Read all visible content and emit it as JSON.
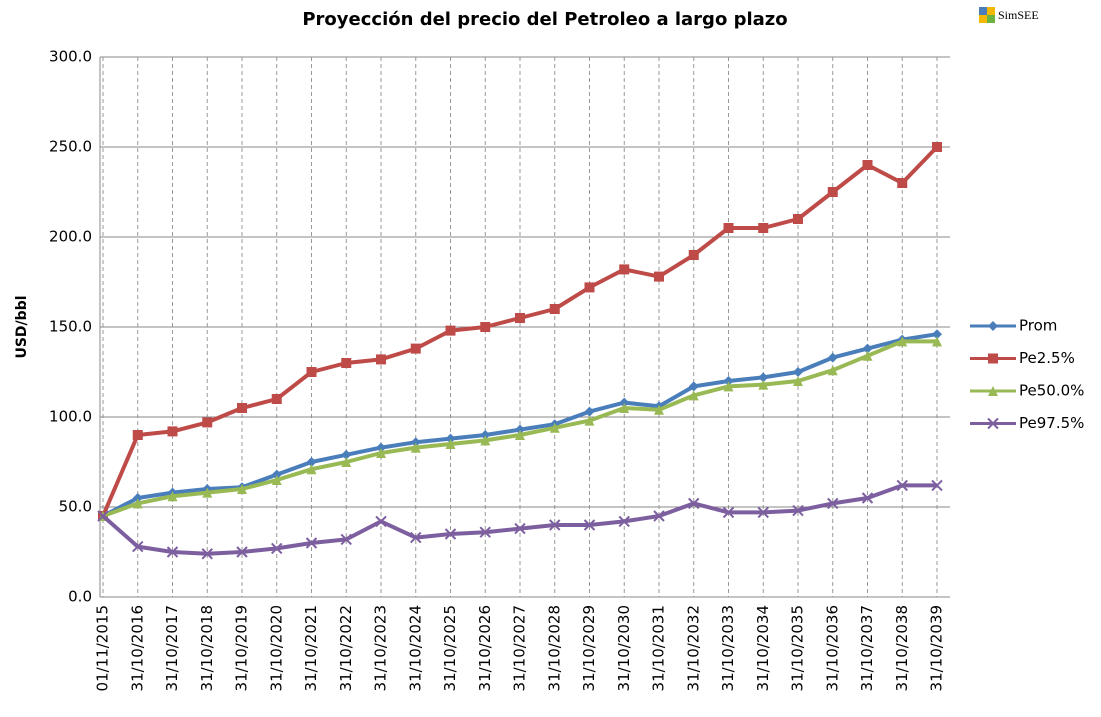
{
  "chart_data": {
    "type": "line",
    "title": "Proyección del precio del Petroleo a largo plazo",
    "brand": "SimSEE",
    "y_label": "USD/bbl",
    "categories": [
      "01/11/2015",
      "31/10/2016",
      "31/10/2017",
      "31/10/2018",
      "31/10/2019",
      "31/10/2020",
      "31/10/2021",
      "31/10/2022",
      "31/10/2023",
      "31/10/2024",
      "31/10/2025",
      "31/10/2026",
      "31/10/2027",
      "31/10/2028",
      "31/10/2029",
      "31/10/2030",
      "31/10/2031",
      "31/10/2032",
      "31/10/2033",
      "31/10/2034",
      "31/10/2035",
      "31/10/2036",
      "31/10/2037",
      "31/10/2038",
      "31/10/2039"
    ],
    "series": [
      {
        "name": "Prom",
        "color": "#4a7ebb",
        "marker": "diamond",
        "values": [
          45,
          55,
          58,
          60,
          61,
          68,
          75,
          79,
          83,
          86,
          88,
          90,
          93,
          96,
          103,
          108,
          106,
          117,
          120,
          122,
          125,
          133,
          138,
          143,
          146
        ]
      },
      {
        "name": "Pe2.5%",
        "color": "#be4b48",
        "marker": "square",
        "values": [
          45,
          90,
          92,
          97,
          105,
          110,
          125,
          130,
          132,
          138,
          148,
          150,
          155,
          160,
          172,
          182,
          178,
          190,
          205,
          205,
          210,
          225,
          240,
          230,
          250
        ]
      },
      {
        "name": "Pe50.0%",
        "color": "#98b954",
        "marker": "triangle",
        "values": [
          45,
          52,
          56,
          58,
          60,
          65,
          71,
          75,
          80,
          83,
          85,
          87,
          90,
          94,
          98,
          105,
          104,
          112,
          117,
          118,
          120,
          126,
          134,
          142,
          142
        ]
      },
      {
        "name": "Pe97.5%",
        "color": "#7d5fa0",
        "marker": "x",
        "values": [
          45,
          28,
          25,
          24,
          25,
          27,
          30,
          32,
          42,
          33,
          35,
          36,
          38,
          40,
          40,
          42,
          45,
          52,
          47,
          47,
          48,
          52,
          55,
          62,
          62
        ]
      }
    ],
    "ylim": [
      0,
      300
    ],
    "yticks": [
      {
        "value": 0,
        "label": "0.0"
      },
      {
        "value": 50,
        "label": "50.0"
      },
      {
        "value": 100,
        "label": "100.0"
      },
      {
        "value": 150,
        "label": "150.0"
      },
      {
        "value": 200,
        "label": "200.0"
      },
      {
        "value": 250,
        "label": "250.0"
      },
      {
        "value": 300,
        "label": "300.0"
      }
    ],
    "grid": true,
    "legend": "right"
  }
}
